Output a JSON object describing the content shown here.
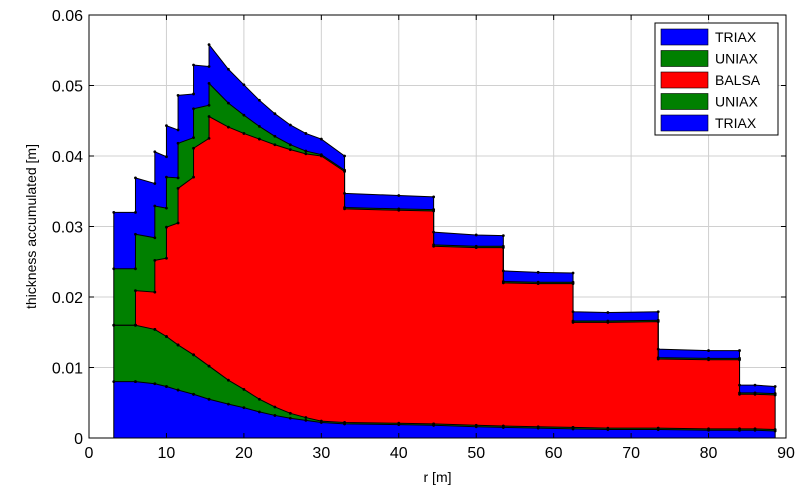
{
  "chart_data": {
    "type": "area",
    "title": "",
    "xlabel": "r [m]",
    "ylabel": "thickness accumulated [m]",
    "xlim": [
      0,
      90
    ],
    "ylim": [
      0,
      0.06
    ],
    "x_ticks": [
      "0",
      "10",
      "20",
      "30",
      "40",
      "50",
      "60",
      "70",
      "80",
      "90"
    ],
    "y_ticks": [
      "0",
      "0.01",
      "0.02",
      "0.03",
      "0.04",
      "0.05",
      "0.06"
    ],
    "grid": true,
    "legend_position": "top-right",
    "legend": [
      {
        "label": "TRIAX",
        "color": "#0000ff"
      },
      {
        "label": "UNIAX",
        "color": "#008000"
      },
      {
        "label": "BALSA",
        "color": "#ff0000"
      },
      {
        "label": "UNIAX",
        "color": "#008000"
      },
      {
        "label": "TRIAX",
        "color": "#0000ff"
      }
    ],
    "x": [
      3.2,
      6,
      6,
      8.5,
      8.5,
      10,
      10,
      11.5,
      11.5,
      13.5,
      13.5,
      15.5,
      15.5,
      18,
      20,
      22,
      24,
      26,
      28,
      30,
      33,
      33,
      40,
      44.5,
      44.5,
      50,
      53.5,
      53.5,
      58,
      62.5,
      62.5,
      67,
      73.5,
      73.5,
      80,
      84,
      84,
      86,
      88.6
    ],
    "series": [
      {
        "name": "TRIAX",
        "color": "#0000ff",
        "values": [
          0.008,
          0.008,
          0.008,
          0.0077,
          0.0077,
          0.0073,
          0.0073,
          0.0068,
          0.0068,
          0.0062,
          0.0062,
          0.0055,
          0.0055,
          0.0048,
          0.0043,
          0.0037,
          0.0032,
          0.0028,
          0.0025,
          0.0022,
          0.002,
          0.002,
          0.0019,
          0.0018,
          0.0018,
          0.0016,
          0.0015,
          0.0015,
          0.0014,
          0.0013,
          0.0013,
          0.0012,
          0.0012,
          0.0012,
          0.0011,
          0.0011,
          0.0011,
          0.0011,
          0.001
        ]
      },
      {
        "name": "UNIAX",
        "color": "#008000",
        "values": [
          0.008,
          0.008,
          0.008,
          0.0077,
          0.0077,
          0.0071,
          0.0071,
          0.0064,
          0.0064,
          0.0056,
          0.0056,
          0.0047,
          0.0047,
          0.0034,
          0.0026,
          0.0018,
          0.0012,
          0.0007,
          0.0004,
          0.0002,
          0.0002,
          0.0002,
          0.0002,
          0.0002,
          0.0002,
          0.0002,
          0.0002,
          0.0002,
          0.0002,
          0.0002,
          0.0002,
          0.0002,
          0.0002,
          0.0002,
          0.0002,
          0.0002,
          0.0002,
          0.0002,
          0.0002
        ]
      },
      {
        "name": "BALSA",
        "color": "#ff0000",
        "values": [
          0.0,
          0.0,
          0.0049,
          0.0053,
          0.0098,
          0.0111,
          0.0155,
          0.0173,
          0.0222,
          0.0252,
          0.0293,
          0.0323,
          0.0354,
          0.0359,
          0.0363,
          0.0369,
          0.0372,
          0.0374,
          0.0374,
          0.0376,
          0.0356,
          0.0303,
          0.0302,
          0.0302,
          0.0252,
          0.0252,
          0.0253,
          0.0203,
          0.0203,
          0.0204,
          0.0149,
          0.015,
          0.0151,
          0.0098,
          0.0098,
          0.0098,
          0.0049,
          0.0049,
          0.0049
        ]
      },
      {
        "name": "UNIAX",
        "color": "#008000",
        "values": [
          0.008,
          0.008,
          0.008,
          0.0077,
          0.0077,
          0.0071,
          0.0071,
          0.0064,
          0.0064,
          0.0056,
          0.0056,
          0.0047,
          0.0047,
          0.0034,
          0.0026,
          0.0018,
          0.0012,
          0.0007,
          0.0004,
          0.0002,
          0.0002,
          0.0002,
          0.0002,
          0.0002,
          0.0002,
          0.0002,
          0.0002,
          0.0002,
          0.0002,
          0.0002,
          0.0002,
          0.0002,
          0.0002,
          0.0002,
          0.0002,
          0.0002,
          0.0002,
          0.0002,
          0.0002
        ]
      },
      {
        "name": "TRIAX",
        "color": "#0000ff",
        "values": [
          0.008,
          0.008,
          0.008,
          0.0077,
          0.0077,
          0.0073,
          0.0073,
          0.0068,
          0.0068,
          0.0062,
          0.0062,
          0.0055,
          0.0055,
          0.0048,
          0.0043,
          0.0037,
          0.0032,
          0.0028,
          0.0025,
          0.0022,
          0.002,
          0.002,
          0.0019,
          0.0018,
          0.0018,
          0.0016,
          0.0015,
          0.0015,
          0.0014,
          0.0013,
          0.0013,
          0.0012,
          0.0012,
          0.0012,
          0.0011,
          0.0011,
          0.0011,
          0.0011,
          0.001
        ]
      }
    ]
  }
}
